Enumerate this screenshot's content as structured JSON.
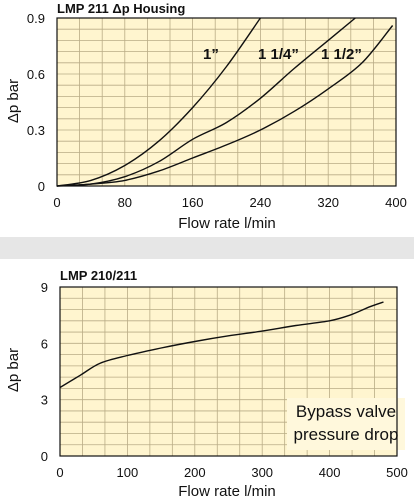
{
  "charts": [
    {
      "title": "LMP 211 Δp  Housing",
      "xlabel": "Flow rate l/min",
      "ylabel": "Δp bar"
    },
    {
      "title": "LMP 210/211",
      "xlabel": "Flow rate l/min",
      "ylabel": "Δp bar",
      "annotation_lines": [
        "Bypass valve",
        "pressure drop"
      ]
    }
  ],
  "colors": {
    "plot_bg": "#fff5cf",
    "grid": "#b9ac86",
    "line": "#111111",
    "separator": "#e6e6e6"
  },
  "chart_data": [
    {
      "type": "line",
      "title": "LMP 211 Δp  Housing",
      "xlabel": "Flow rate l/min",
      "ylabel": "Δp bar",
      "xlim": [
        0,
        400
      ],
      "ylim": [
        0,
        0.9
      ],
      "xticks": [
        0,
        80,
        160,
        240,
        320,
        400
      ],
      "yticks": [
        0,
        0.3,
        0.6,
        0.9
      ],
      "xtick_labels": [
        "0",
        "80",
        "160",
        "240",
        "320",
        "400"
      ],
      "ytick_labels": [
        "0",
        "0.3",
        "0.6",
        "0.9"
      ],
      "grid": true,
      "series": [
        {
          "name": "1”",
          "x": [
            0,
            40,
            80,
            120,
            160,
            200,
            240
          ],
          "y": [
            0,
            0.03,
            0.11,
            0.24,
            0.42,
            0.64,
            0.9
          ]
        },
        {
          "name": "1 1/4”",
          "x": [
            0,
            40,
            80,
            120,
            160,
            200,
            240,
            280,
            320,
            352
          ],
          "y": [
            0,
            0.01,
            0.05,
            0.13,
            0.25,
            0.34,
            0.47,
            0.63,
            0.78,
            0.9
          ]
        },
        {
          "name": "1 1/2”",
          "x": [
            0,
            40,
            80,
            120,
            160,
            200,
            240,
            280,
            320,
            360,
            396
          ],
          "y": [
            0,
            0.01,
            0.03,
            0.08,
            0.15,
            0.22,
            0.3,
            0.4,
            0.52,
            0.66,
            0.86
          ]
        }
      ]
    },
    {
      "type": "line",
      "title": "LMP 210/211",
      "xlabel": "Flow rate l/min",
      "ylabel": "Δp bar",
      "xlim": [
        0,
        500
      ],
      "ylim": [
        0,
        9
      ],
      "xticks": [
        0,
        100,
        200,
        300,
        400,
        500
      ],
      "yticks": [
        0,
        3,
        6,
        9
      ],
      "xtick_labels": [
        "0",
        "100",
        "200",
        "300",
        "400",
        "500"
      ],
      "ytick_labels": [
        "0",
        "3",
        "6",
        "9"
      ],
      "grid": true,
      "annotation": "Bypass valve pressure drop",
      "series": [
        {
          "x": [
            0,
            30,
            60,
            100,
            150,
            200,
            250,
            300,
            350,
            400,
            430,
            460,
            480
          ],
          "y": [
            3.65,
            4.3,
            4.95,
            5.35,
            5.75,
            6.1,
            6.4,
            6.65,
            6.95,
            7.2,
            7.5,
            7.95,
            8.2
          ]
        }
      ]
    }
  ]
}
